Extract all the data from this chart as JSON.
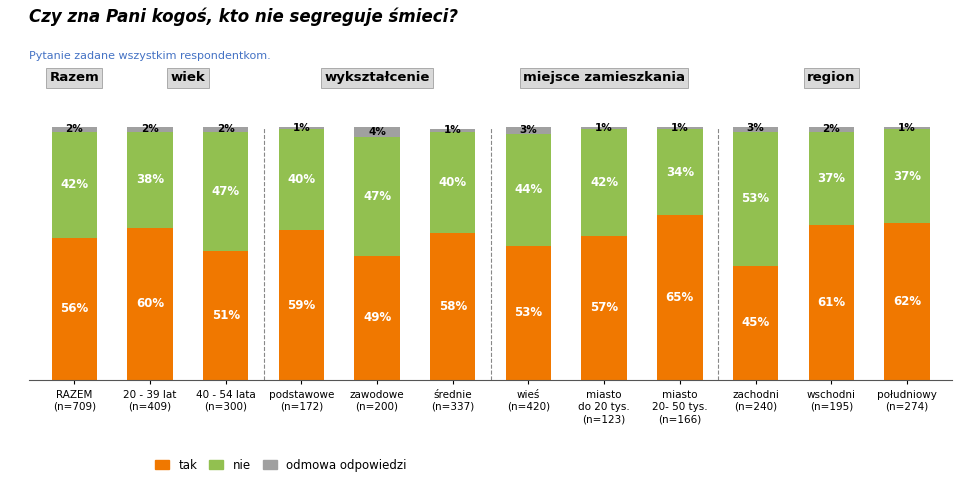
{
  "title": "Czy zna Pani kogoś, kto nie segreguje śmieci?",
  "subtitle": "Pytanie zadane wszystkim respondentkom.",
  "categories": [
    "RAZEM\n(n=709)",
    "20 - 39 lat\n(n=409)",
    "40 - 54 lata\n(n=300)",
    "podstawowe\n(n=172)",
    "zawodowe\n(n=200)",
    "średnie\n(n=337)",
    "wieś\n(n=420)",
    "miasto\ndo 20 tys.\n(n=123)",
    "miasto\n20- 50 tys.\n(n=166)",
    "zachodni\n(n=240)",
    "wschodni\n(n=195)",
    "południowy\n(n=274)"
  ],
  "tak": [
    56,
    60,
    51,
    59,
    49,
    58,
    53,
    57,
    65,
    45,
    61,
    62
  ],
  "nie": [
    42,
    38,
    47,
    40,
    47,
    40,
    44,
    42,
    34,
    53,
    37,
    37
  ],
  "odmowa": [
    2,
    2,
    2,
    1,
    4,
    1,
    3,
    1,
    1,
    3,
    2,
    1
  ],
  "color_tak": "#F07800",
  "color_nie": "#92C050",
  "color_odmowa": "#A0A0A0",
  "group_defs": [
    [
      "Razem",
      0,
      0
    ],
    [
      "wiek",
      1,
      2
    ],
    [
      "wykształcenie",
      3,
      5
    ],
    [
      "miejsce zamieszkania",
      6,
      8
    ],
    [
      "region",
      9,
      11
    ]
  ],
  "dashed_lines_after": [
    2,
    5,
    8
  ],
  "title_fontsize": 12,
  "subtitle_fontsize": 8,
  "tick_fontsize": 7.5,
  "bar_label_fontsize": 8.5,
  "legend_fontsize": 8.5,
  "group_label_fontsize": 9.5
}
